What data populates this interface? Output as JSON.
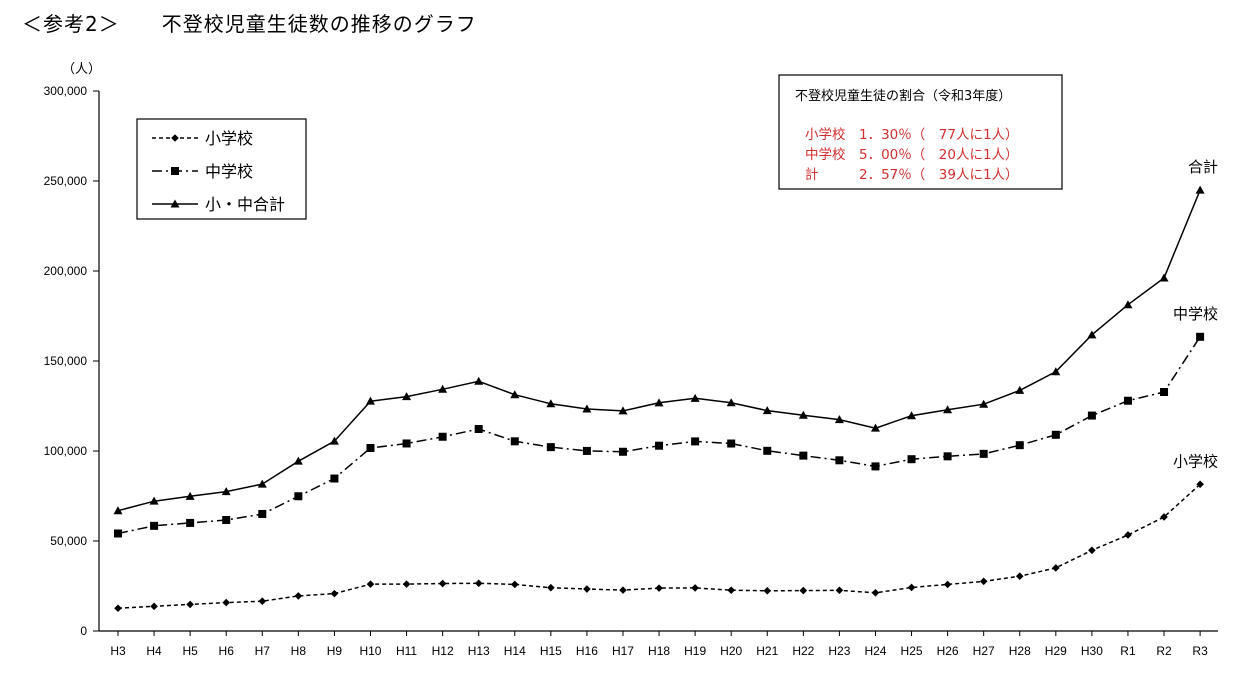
{
  "title": "＜参考2＞　　不登校児童生徒数の推移のグラフ",
  "chart_data": {
    "type": "line",
    "title": "不登校児童生徒数の推移のグラフ",
    "ylabel": "（人）",
    "xlabel": "",
    "ylim": [
      0,
      300000
    ],
    "yticks": [
      0,
      50000,
      100000,
      150000,
      200000,
      250000,
      300000
    ],
    "ytick_labels": [
      "0",
      "50,000",
      "100,000",
      "150,000",
      "200,000",
      "250,000",
      "300,000"
    ],
    "grid": false,
    "legend_position": "top-left",
    "categories": [
      "H3",
      "H4",
      "H5",
      "H6",
      "H7",
      "H8",
      "H9",
      "H10",
      "H11",
      "H12",
      "H13",
      "H14",
      "H15",
      "H16",
      "H17",
      "H18",
      "H19",
      "H20",
      "H21",
      "H22",
      "H23",
      "H24",
      "H25",
      "H26",
      "H27",
      "H28",
      "H29",
      "H30",
      "R1",
      "R2",
      "R3"
    ],
    "series": [
      {
        "name": "小学校",
        "end_label": "小学校",
        "line_style": "dashed",
        "marker": "diamond",
        "values": [
          12645,
          13710,
          14769,
          15786,
          16569,
          19498,
          20765,
          26017,
          26047,
          26373,
          26511,
          25869,
          24077,
          23318,
          22709,
          23825,
          23927,
          22652,
          22327,
          22463,
          22622,
          21243,
          24175,
          25864,
          27583,
          30448,
          35032,
          44841,
          53350,
          63350,
          81498
        ]
      },
      {
        "name": "中学校",
        "end_label": "中学校",
        "line_style": "dash-dot",
        "marker": "square",
        "values": [
          54172,
          58421,
          60039,
          61663,
          65022,
          74853,
          84701,
          101675,
          104180,
          107913,
          112211,
          105383,
          102149,
          100040,
          99578,
          102940,
          105328,
          104153,
          100105,
          97428,
          94836,
          91446,
          95442,
          97033,
          98408,
          103235,
          108999,
          119687,
          127922,
          132777,
          163442
        ]
      },
      {
        "name": "小・中合計",
        "end_label": "合計",
        "line_style": "solid",
        "marker": "triangle",
        "values": [
          66817,
          72131,
          74808,
          77449,
          81591,
          94351,
          105466,
          127692,
          130227,
          134286,
          138722,
          131252,
          126226,
          123358,
          122287,
          126765,
          129255,
          126805,
          122432,
          119891,
          117458,
          112689,
          119617,
          122897,
          125991,
          133683,
          144031,
          164528,
          181272,
          196127,
          244940
        ]
      }
    ],
    "info_box": {
      "title": "不登校児童生徒の割合（令和3年度）",
      "rows": [
        "小学校　1．30％（　77人に1人）",
        "中学校　5．00％（　20人に1人）",
        "計　　　2．57％（　39人に1人）"
      ]
    }
  }
}
